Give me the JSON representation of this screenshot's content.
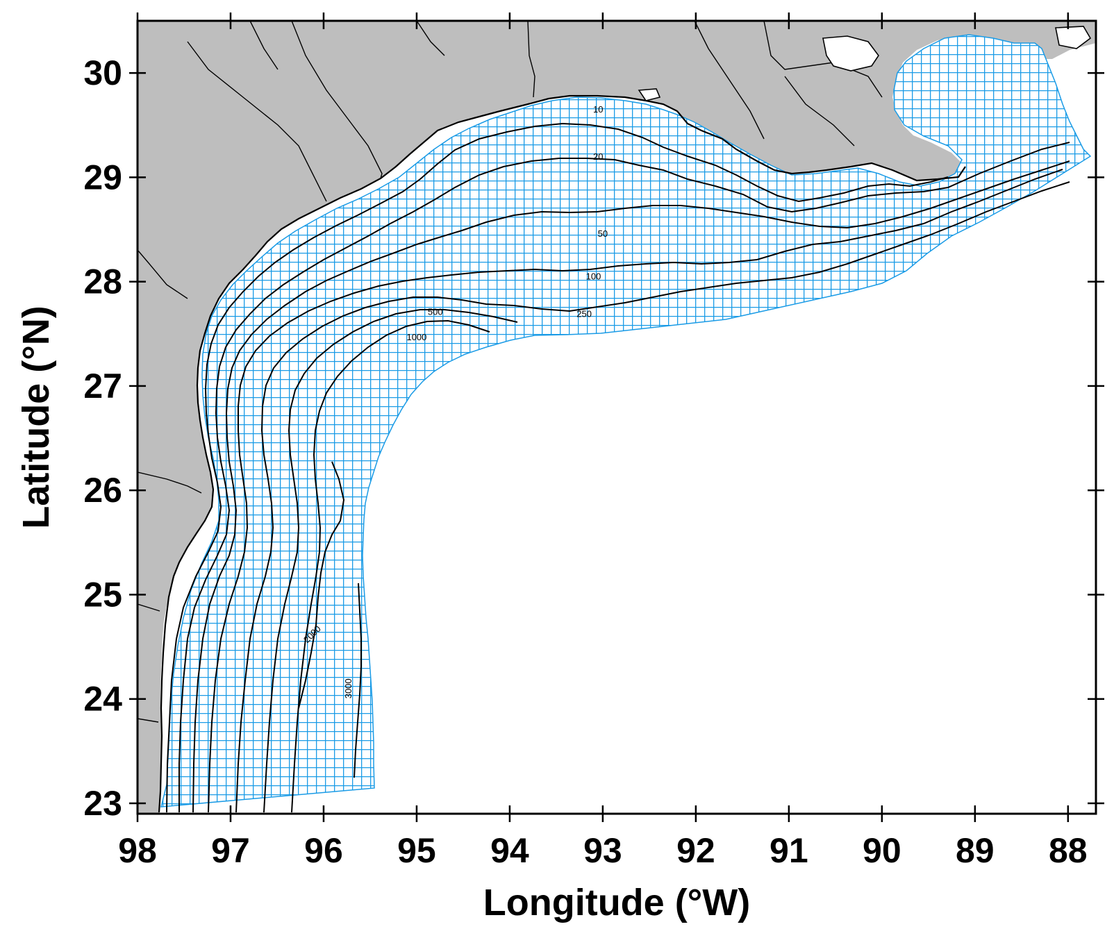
{
  "map": {
    "xlabel": "Longitude (°W)",
    "ylabel": "Latitude (°N)",
    "lon_range": [
      98,
      87.7
    ],
    "lat_range": [
      22.9,
      30.5
    ],
    "x_ticks": [
      "98",
      "97",
      "96",
      "95",
      "94",
      "93",
      "92",
      "91",
      "90",
      "89",
      "88"
    ],
    "y_ticks": [
      "30",
      "29",
      "28",
      "27",
      "26",
      "25",
      "24",
      "23"
    ],
    "colors": {
      "land": "#bebebe",
      "grid": "#1a9be6",
      "coast": "#000000",
      "contour": "#000000",
      "water": "#ffffff"
    },
    "contour_labels": [
      {
        "text": "10",
        "lon": 93.05,
        "lat": 29.62
      },
      {
        "text": "20",
        "lon": 93.05,
        "lat": 29.17
      },
      {
        "text": "50",
        "lon": 93.0,
        "lat": 28.43
      },
      {
        "text": "100",
        "lon": 93.1,
        "lat": 28.02
      },
      {
        "text": "250",
        "lon": 93.2,
        "lat": 27.66
      },
      {
        "text": "500",
        "lon": 94.8,
        "lat": 27.68
      },
      {
        "text": "1000",
        "lon": 95.0,
        "lat": 27.44
      },
      {
        "text": "2000",
        "lon": 96.1,
        "lat": 24.6
      },
      {
        "text": "3000",
        "lon": 95.7,
        "lat": 24.1
      }
    ]
  }
}
